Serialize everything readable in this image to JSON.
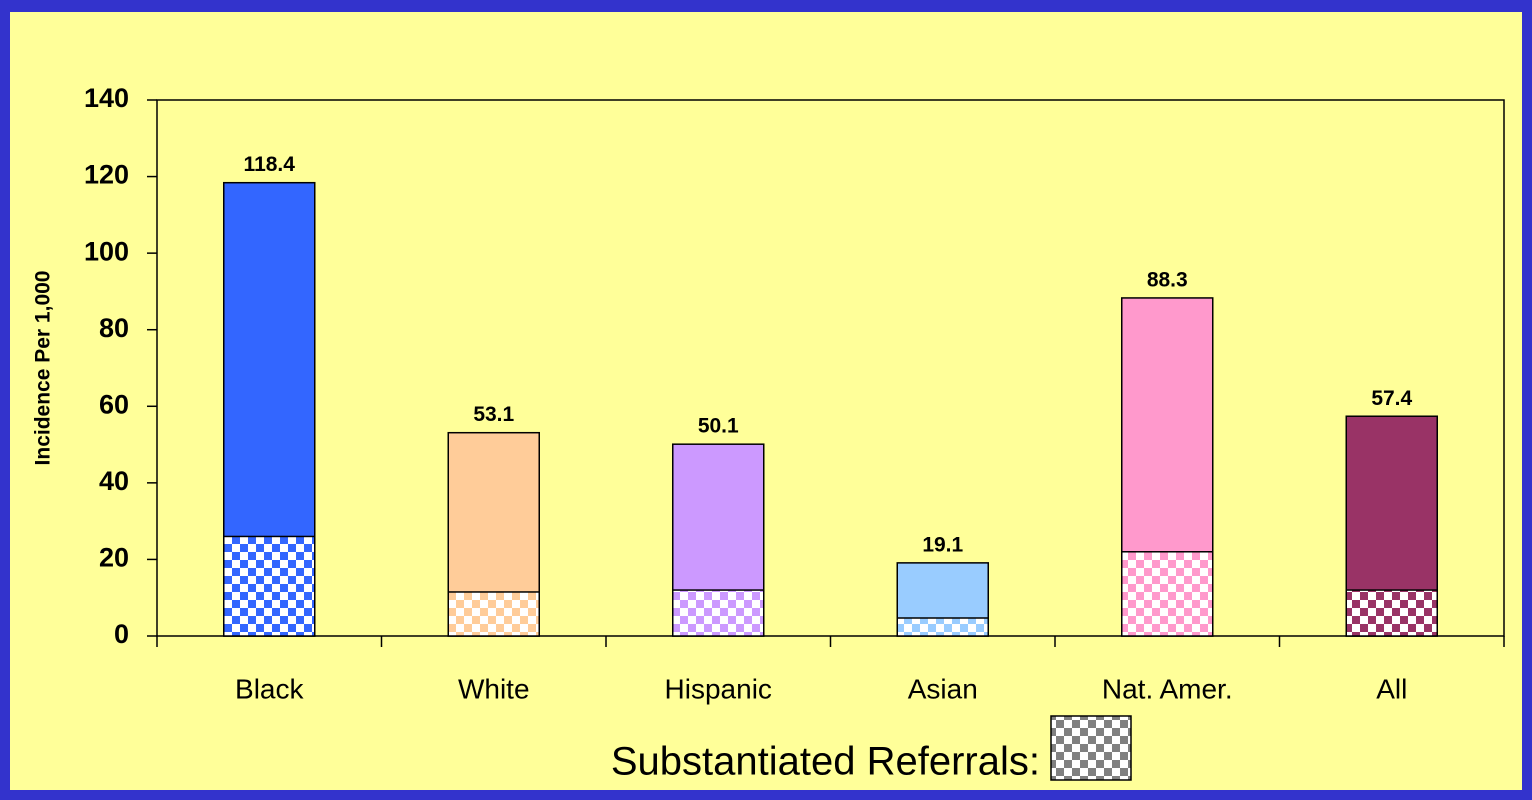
{
  "chart_data": {
    "type": "bar",
    "ylabel": "Incidence Per 1,000",
    "categories": [
      "Black",
      "White",
      "Hispanic",
      "Asian",
      "Nat. Amer.",
      "All"
    ],
    "colors": [
      "#3366ff",
      "#ffcc99",
      "#cc99ff",
      "#99ccff",
      "#ff99cc",
      "#993366"
    ],
    "series": [
      {
        "values": [
          118.4,
          53.1,
          50.1,
          19.1,
          88.3,
          57.4
        ]
      },
      {
        "name": "Substantiated Referrals:",
        "color": "#808080",
        "values": [
          26,
          11.5,
          12,
          4.7,
          22,
          12
        ]
      }
    ],
    "ylim": [
      0,
      140
    ],
    "yticks": [
      0,
      20,
      40,
      60,
      80,
      100,
      120,
      140
    ]
  }
}
